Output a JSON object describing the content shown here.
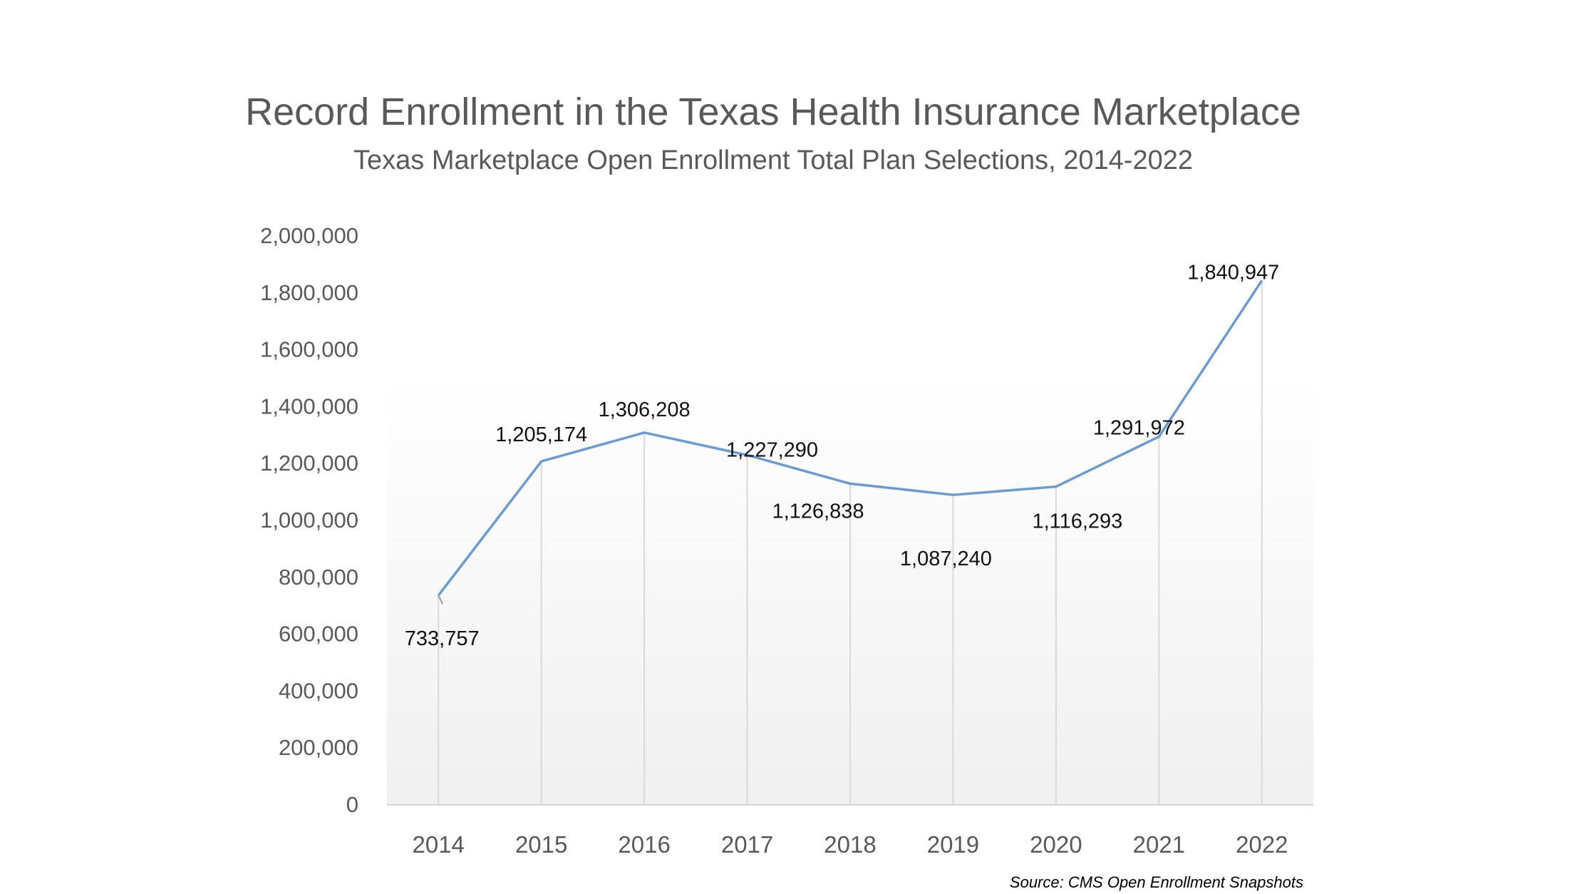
{
  "chart_data": {
    "type": "line",
    "title": "Record Enrollment in the Texas Health Insurance Marketplace",
    "subtitle": "Texas Marketplace Open Enrollment Total Plan Selections, 2014-2022",
    "xlabel": "",
    "ylabel": "",
    "categories": [
      "2014",
      "2015",
      "2016",
      "2017",
      "2018",
      "2019",
      "2020",
      "2021",
      "2022"
    ],
    "values": [
      733757,
      1205174,
      1306208,
      1227290,
      1126838,
      1087240,
      1116293,
      1291972,
      1840947
    ],
    "data_labels": [
      "733,757",
      "1,205,174",
      "1,306,208",
      "1,227,290",
      "1,126,838",
      "1,087,240",
      "1,116,293",
      "1,291,972",
      "1,840,947"
    ],
    "ylim": [
      0,
      2000000
    ],
    "yticks": [
      "0",
      "200,000",
      "400,000",
      "600,000",
      "800,000",
      "1,000,000",
      "1,200,000",
      "1,400,000",
      "1,600,000",
      "1,800,000",
      "2,000,000"
    ],
    "grid": "vertical lines at categories",
    "legend": "none",
    "line_color": "#6a9bd5",
    "source": "Source: CMS Open Enrollment Snapshots"
  }
}
